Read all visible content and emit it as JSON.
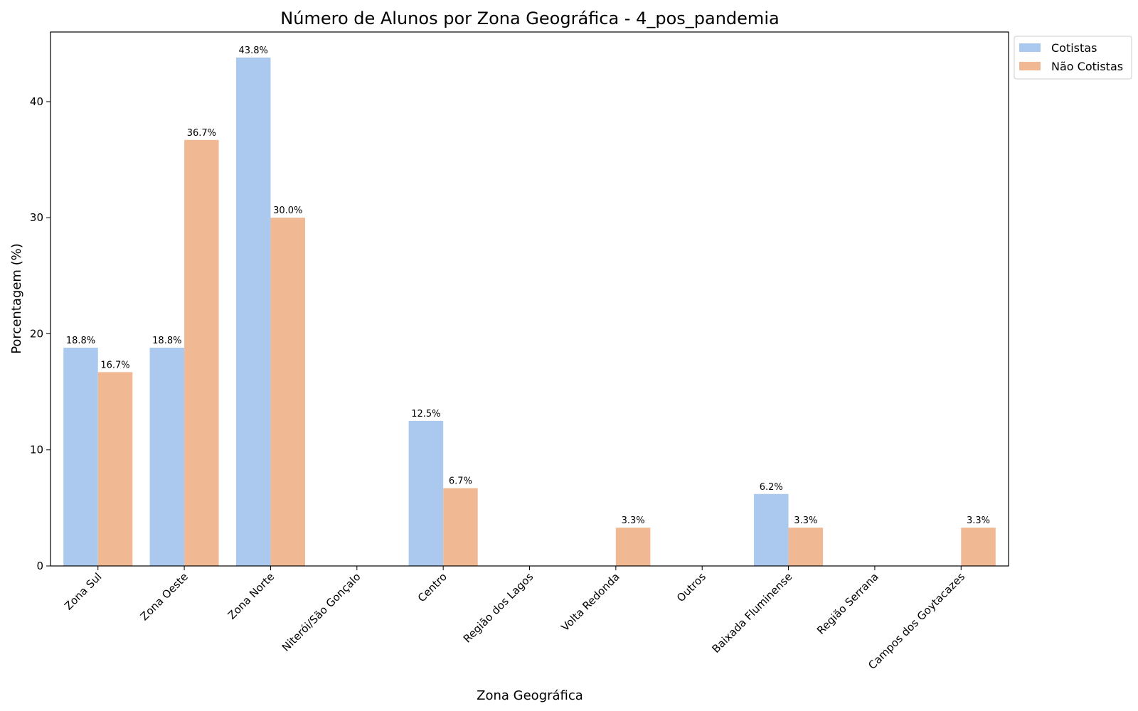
{
  "chart_data": {
    "type": "bar",
    "title": "Número de Alunos por Zona Geográfica - 4_pos_pandemia",
    "xlabel": "Zona Geográfica",
    "ylabel": "Porcentagem (%)",
    "ylim": [
      0,
      46
    ],
    "yticks": [
      "0",
      "10",
      "20",
      "30",
      "40"
    ],
    "categories": [
      "Zona Sul",
      "Zona Oeste",
      "Zona Norte",
      "Niterói/São Gonçalo",
      "Centro",
      "Região dos Lagos",
      "Volta Redonda",
      "Outros",
      "Baixada Fluminense",
      "Região Serrana",
      "Campos dos Goytacazes"
    ],
    "series": [
      {
        "name": "Cotistas",
        "color": "#abc9ee",
        "values": [
          18.8,
          18.8,
          43.8,
          0,
          12.5,
          0,
          0,
          0,
          6.2,
          0,
          0
        ],
        "labels": [
          "18.8%",
          "18.8%",
          "43.8%",
          "",
          "12.5%",
          "",
          "",
          "",
          "6.2%",
          "",
          ""
        ]
      },
      {
        "name": "Não Cotistas",
        "color": "#f0b994",
        "values": [
          16.7,
          36.7,
          30.0,
          0,
          6.7,
          0,
          3.3,
          0,
          3.3,
          0,
          3.3
        ],
        "labels": [
          "16.7%",
          "36.7%",
          "30.0%",
          "",
          "6.7%",
          "",
          "3.3%",
          "",
          "3.3%",
          "",
          "3.3%"
        ]
      }
    ],
    "legend": {
      "position": "outside top-right",
      "entries": [
        "Cotistas",
        "Não Cotistas"
      ]
    },
    "grid": false
  }
}
